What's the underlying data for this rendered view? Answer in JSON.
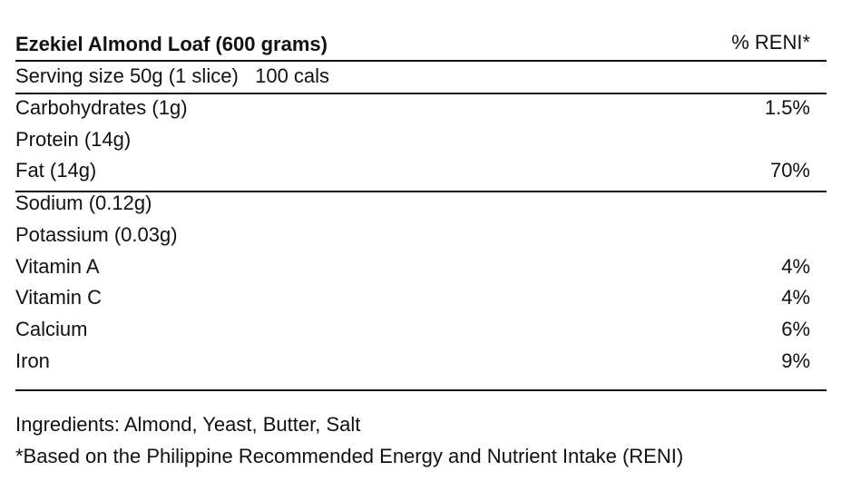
{
  "label": {
    "title": "Ezekiel Almond Loaf (600 grams)",
    "reni_header": "% RENI*",
    "serving": "Serving size 50g (1 slice)   100 cals",
    "rows": [
      {
        "name": "Carbohydrates (1g)",
        "value": "1.5%"
      },
      {
        "name": "Protein (14g)",
        "value": ""
      },
      {
        "name": "Fat (14g)",
        "value": "70%"
      },
      {
        "name": "Sodium (0.12g)",
        "value": ""
      },
      {
        "name": "Potassium (0.03g)",
        "value": ""
      },
      {
        "name": "Vitamin A",
        "value": "4%"
      },
      {
        "name": "Vitamin C",
        "value": "4%"
      },
      {
        "name": "Calcium",
        "value": "6%"
      },
      {
        "name": "Iron",
        "value": "9%"
      }
    ],
    "ingredients": "Ingredients: Almond, Yeast, Butter, Salt",
    "footnote": "*Based on the Philippine Recommended Energy and Nutrient Intake (RENI)"
  }
}
